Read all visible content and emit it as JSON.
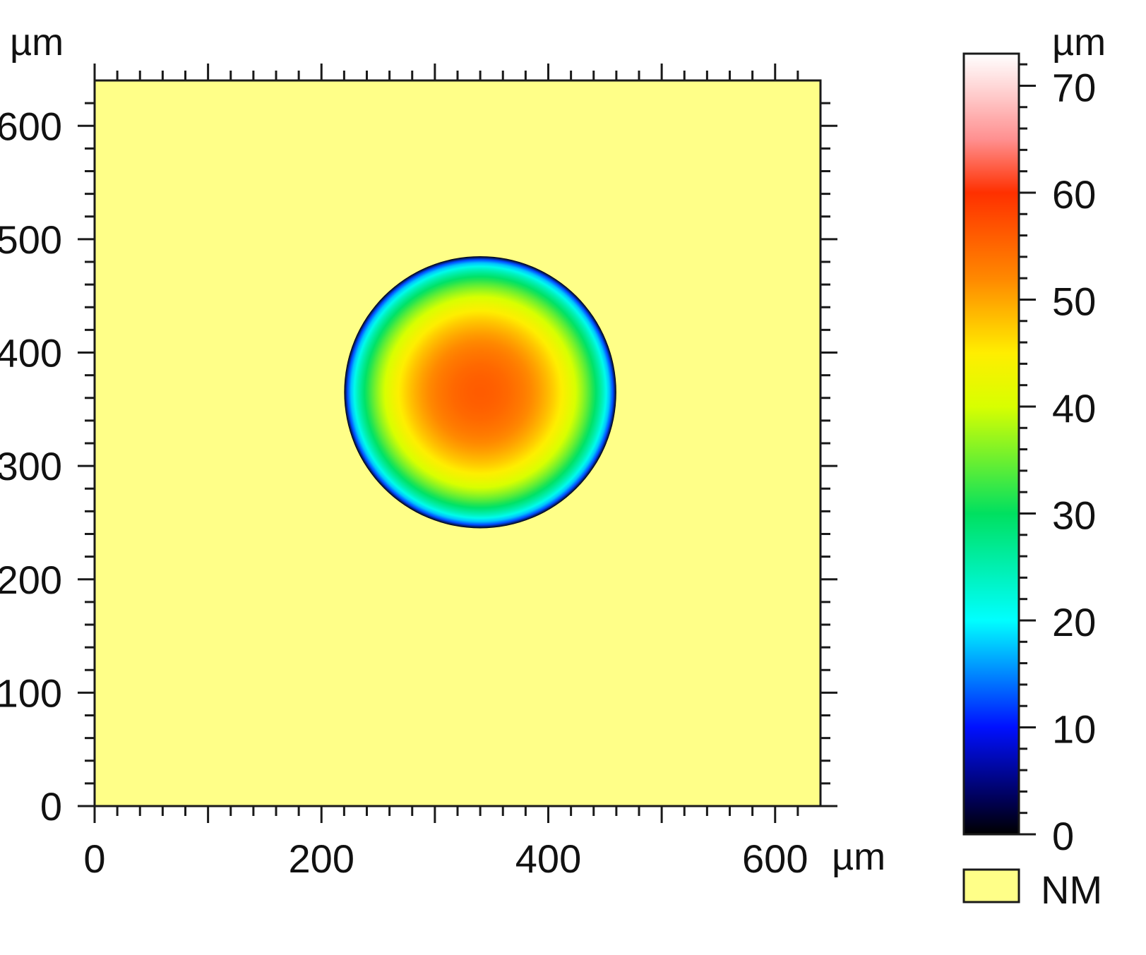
{
  "chart_data": {
    "type": "heatmap",
    "title": "",
    "x_axis": {
      "unit": "µm",
      "range": [
        0,
        640
      ],
      "ticks": [
        0,
        200,
        400,
        600
      ],
      "tick_labels": [
        "0",
        "200",
        "400",
        "600"
      ]
    },
    "y_axis": {
      "unit": "µm",
      "range": [
        0,
        640
      ],
      "ticks": [
        0,
        100,
        200,
        300,
        400,
        500,
        600
      ],
      "tick_labels": [
        "0",
        "100",
        "200",
        "300",
        "400",
        "500",
        "600"
      ]
    },
    "colorbar": {
      "unit": "µm",
      "range": [
        0,
        73
      ],
      "ticks": [
        0,
        10,
        20,
        30,
        40,
        50,
        60,
        70
      ],
      "tick_labels": [
        "0",
        "10",
        "20",
        "30",
        "40",
        "50",
        "60",
        "70"
      ],
      "colormap": [
        {
          "value": 0,
          "color": "#000000"
        },
        {
          "value": 3,
          "color": "#000050"
        },
        {
          "value": 10,
          "color": "#0010ff"
        },
        {
          "value": 20,
          "color": "#00ffff"
        },
        {
          "value": 30,
          "color": "#00e060"
        },
        {
          "value": 40,
          "color": "#d8ff00"
        },
        {
          "value": 45,
          "color": "#ffee00"
        },
        {
          "value": 52,
          "color": "#ff8800"
        },
        {
          "value": 60,
          "color": "#ff3000"
        },
        {
          "value": 65,
          "color": "#ff9090"
        },
        {
          "value": 70,
          "color": "#ffd8d8"
        },
        {
          "value": 73,
          "color": "#ffffff"
        }
      ]
    },
    "feature": {
      "shape": "dome",
      "center": [
        340,
        365
      ],
      "radius": 120,
      "peak_height": 56,
      "edge_height": 0
    },
    "background_label": "NM",
    "background_color": "#ffff88"
  }
}
